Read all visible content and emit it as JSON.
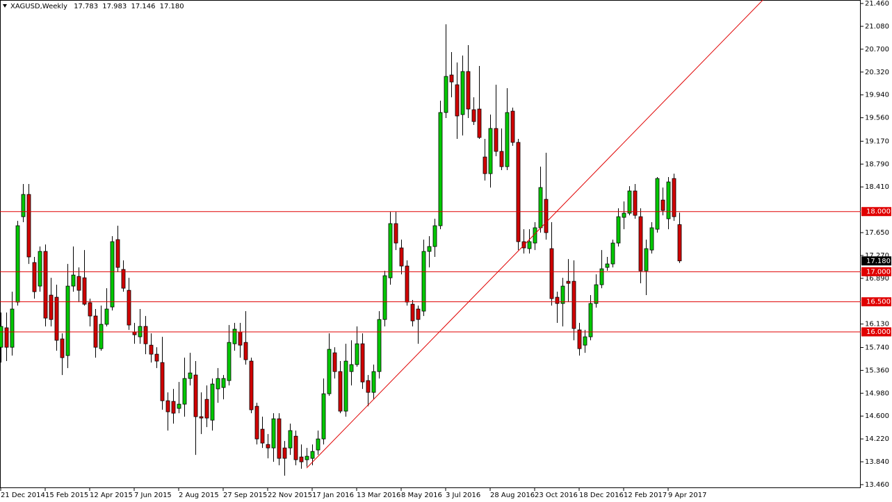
{
  "chart_data": {
    "type": "candlestick",
    "title": "XAGUSD,Weekly",
    "ohlc_labels": [
      "17.783",
      "17.983",
      "17.146",
      "17.180"
    ],
    "categories": [
      "21 Dec 2014",
      null,
      null,
      null,
      null,
      null,
      null,
      null,
      "15 Feb 2015",
      null,
      null,
      null,
      null,
      null,
      null,
      null,
      "12 Apr 2015",
      null,
      null,
      null,
      null,
      null,
      null,
      null,
      "7 Jun 2015",
      null,
      null,
      null,
      null,
      null,
      null,
      null,
      "2 Aug 2015",
      null,
      null,
      null,
      null,
      null,
      null,
      null,
      "27 Sep 2015",
      null,
      null,
      null,
      null,
      null,
      null,
      null,
      "22 Nov 2015",
      null,
      null,
      null,
      null,
      null,
      null,
      null,
      "17 Jan 2016",
      null,
      null,
      null,
      null,
      null,
      null,
      null,
      "13 Mar 2016",
      null,
      null,
      null,
      null,
      null,
      null,
      null,
      "8 May 2016",
      null,
      null,
      null,
      null,
      null,
      null,
      null,
      "3 Jul 2016",
      null,
      null,
      null,
      null,
      null,
      null,
      null,
      "28 Aug 2016",
      null,
      null,
      null,
      null,
      null,
      null,
      null,
      "23 Oct 2016",
      null,
      null,
      null,
      null,
      null,
      null,
      null,
      "18 Dec 2016",
      null,
      null,
      null,
      null,
      null,
      null,
      null,
      "12 Feb 2017",
      null,
      null,
      null,
      null,
      null,
      null,
      null,
      "9 Apr 2017",
      null,
      null
    ],
    "open": [
      15.744,
      16.068,
      15.744,
      16.495,
      17.915,
      18.285,
      17.153,
      16.761,
      17.338,
      16.611,
      16.576,
      15.883,
      15.606,
      16.761,
      16.922,
      16.899,
      16.484,
      16.264,
      15.721,
      16.126,
      16.414,
      17.534,
      17.038,
      16.691,
      15.999,
      15.918,
      16.091,
      15.779,
      15.629,
      15.49,
      14.855,
      14.844,
      14.728,
      14.798,
      15.225,
      15.283,
      14.59,
      14.878,
      14.532,
      15.052,
      15.075,
      15.19,
      15.802,
      15.999,
      15.825,
      15.514,
      14.763,
      14.382,
      14.128,
      14.07,
      14.555,
      14.07,
      14.07,
      14.266,
      13.92,
      13.874,
      13.897,
      14.036,
      14.22,
      14.971,
      15.652,
      15.34,
      14.682,
      15.34,
      15.456,
      15.802,
      15.19,
      14.994,
      15.34,
      16.206,
      16.899,
      17.8,
      17.396,
      17.095,
      16.46,
      16.38,
      16.345,
      17.338,
      17.419,
      17.765,
      19.647,
      20.271,
      20.109,
      19.613,
      20.329,
      19.694,
      19.705,
      18.908,
      18.631,
      19.382,
      19.001,
      18.747,
      19.67,
      19.151,
      17.5,
      17.384,
      17.477,
      17.731,
      18.204,
      17.384,
      16.576,
      16.472,
      16.841,
      16.841,
      16.033,
      15.779,
      15.918,
      16.472,
      16.784,
      17.072,
      17.13,
      17.477,
      17.904,
      17.973,
      18.343,
      17.915,
      17.015,
      17.361,
      17.707,
      18.192,
      17.881,
      18.55,
      17.783
    ],
    "high": [
      16.322,
      16.322,
      16.668,
      17.846,
      18.458,
      18.458,
      17.246,
      17.419,
      17.453,
      16.899,
      16.784,
      15.975,
      17.13,
      17.419,
      17.072,
      17.361,
      16.553,
      16.38,
      16.437,
      16.726,
      17.592,
      17.765,
      17.188,
      16.899,
      16.149,
      16.38,
      16.264,
      15.975,
      15.744,
      15.918,
      14.994,
      15.052,
      15.167,
      15.571,
      15.652,
      15.514,
      14.994,
      15.109,
      15.225,
      15.398,
      15.283,
      16.114,
      16.149,
      16.149,
      16.345,
      15.571,
      14.821,
      14.59,
      14.301,
      14.648,
      14.648,
      14.186,
      14.474,
      14.359,
      14.128,
      14.07,
      14.128,
      14.359,
      15.225,
      15.975,
      15.744,
      15.514,
      15.802,
      15.86,
      16.091,
      15.975,
      15.283,
      15.456,
      16.345,
      17.015,
      17.996,
      17.996,
      17.534,
      17.188,
      16.53,
      16.437,
      17.534,
      17.592,
      17.881,
      19.844,
      21.114,
      20.652,
      20.479,
      20.594,
      20.767,
      19.901,
      20.421,
      19.209,
      19.613,
      20.109,
      19.382,
      20.052,
      19.728,
      19.209,
      17.707,
      17.707,
      17.823,
      18.747,
      18.978,
      17.823,
      16.668,
      16.899,
      17.211,
      17.188,
      16.149,
      16.033,
      16.611,
      16.957,
      17.361,
      17.246,
      17.534,
      18.054,
      18.169,
      18.423,
      18.458,
      18.054,
      17.534,
      17.823,
      18.574,
      18.4,
      18.574,
      18.631,
      17.983
    ],
    "low": [
      15.49,
      15.514,
      15.606,
      16.437,
      17.823,
      17.13,
      16.553,
      16.668,
      16.091,
      16.091,
      15.687,
      15.283,
      15.398,
      16.668,
      16.495,
      16.437,
      16.091,
      15.571,
      15.687,
      16.091,
      16.356,
      16.992,
      16.668,
      16.033,
      15.802,
      15.802,
      15.629,
      15.49,
      15.398,
      14.705,
      14.359,
      14.474,
      14.648,
      14.59,
      15.109,
      13.955,
      14.301,
      14.417,
      14.359,
      14.821,
      14.878,
      15.109,
      15.687,
      15.571,
      15.456,
      14.648,
      14.128,
      14.07,
      13.897,
      13.839,
      13.782,
      13.608,
      13.955,
      13.782,
      13.724,
      13.758,
      13.782,
      13.955,
      14.128,
      14.936,
      15.225,
      14.648,
      14.59,
      15.109,
      15.421,
      15.052,
      14.763,
      14.878,
      15.225,
      16.091,
      16.784,
      17.361,
      16.957,
      16.437,
      16.091,
      15.802,
      16.264,
      17.072,
      17.246,
      17.707,
      19.555,
      19.901,
      19.209,
      19.266,
      19.555,
      19.44,
      19.209,
      18.516,
      18.4,
      18.92,
      18.689,
      18.689,
      19.093,
      17.361,
      17.303,
      17.303,
      17.361,
      17.65,
      17.534,
      16.437,
      16.149,
      16.091,
      16.495,
      15.86,
      15.606,
      15.652,
      15.86,
      16.403,
      16.726,
      17.015,
      17.072,
      17.419,
      17.707,
      17.938,
      17.881,
      16.807,
      16.611,
      17.303,
      17.65,
      17.938,
      17.707,
      17.846,
      17.146
    ],
    "close": [
      16.091,
      15.744,
      16.38,
      17.765,
      18.285,
      17.246,
      16.668,
      17.338,
      16.229,
      16.206,
      15.86,
      15.571,
      16.761,
      16.945,
      16.691,
      16.46,
      16.264,
      15.744,
      16.126,
      16.38,
      17.5,
      17.072,
      16.726,
      16.114,
      15.952,
      16.091,
      15.802,
      15.629,
      15.514,
      14.855,
      14.671,
      14.648,
      14.798,
      15.225,
      15.317,
      14.59,
      14.567,
      14.567,
      15.133,
      15.225,
      15.225,
      15.825,
      16.045,
      15.779,
      15.537,
      14.705,
      14.22,
      14.151,
      14.07,
      14.555,
      13.897,
      13.897,
      14.359,
      13.874,
      13.839,
      13.932,
      14.012,
      14.22,
      14.971,
      15.71,
      15.34,
      14.682,
      15.514,
      15.456,
      15.802,
      15.167,
      14.994,
      15.34,
      16.206,
      16.934,
      17.8,
      17.477,
      17.095,
      16.495,
      16.183,
      16.206,
      17.338,
      17.419,
      17.765,
      19.647,
      20.248,
      20.155,
      19.59,
      20.329,
      19.705,
      19.497,
      19.232,
      18.631,
      19.382,
      19.001,
      18.747,
      19.647,
      19.151,
      17.5,
      17.396,
      17.5,
      17.731,
      18.4,
      17.65,
      16.553,
      16.472,
      16.761,
      16.807,
      16.056,
      15.721,
      15.918,
      16.472,
      16.784,
      17.049,
      17.13,
      17.477,
      17.915,
      17.973,
      18.343,
      17.938,
      17.015,
      17.384,
      17.731,
      18.55,
      18.019,
      18.493,
      17.915,
      17.18
    ],
    "up_color": "#00c800",
    "down_color": "#d00000",
    "trendline": {
      "color": "#e00000",
      "extend": "right",
      "values": [
        null,
        null,
        null,
        null,
        null,
        null,
        null,
        null,
        null,
        null,
        null,
        null,
        null,
        null,
        null,
        null,
        null,
        null,
        null,
        null,
        null,
        null,
        null,
        null,
        null,
        null,
        null,
        null,
        null,
        null,
        null,
        null,
        null,
        null,
        null,
        null,
        null,
        null,
        null,
        null,
        null,
        null,
        null,
        null,
        null,
        null,
        null,
        null,
        null,
        null,
        null,
        null,
        null,
        null,
        null,
        13.735,
        null,
        null,
        null,
        null,
        null,
        null,
        null,
        null,
        null,
        null,
        null,
        null,
        null,
        null,
        null,
        null,
        null,
        null,
        null,
        null,
        null,
        null,
        null,
        null,
        null,
        null,
        null,
        null,
        null,
        null,
        null,
        null,
        null,
        null,
        null,
        null,
        null,
        null,
        null,
        null,
        null,
        null,
        null,
        null,
        null,
        null,
        null,
        null,
        null,
        null,
        null,
        null,
        null,
        null,
        null,
        null,
        null,
        null,
        null,
        null,
        null,
        null,
        null,
        null,
        null,
        null,
        20.092
      ]
    },
    "levels": [
      {
        "value": 18,
        "label": "18.000"
      },
      {
        "value": 17,
        "label": "17.000"
      },
      {
        "value": 16.5,
        "label": "16.500"
      },
      {
        "value": 16,
        "label": "16.000"
      }
    ],
    "level_color": "#e00000",
    "last_price": {
      "value": 17.18,
      "label": "17.180"
    },
    "ylim": [
      13.402,
      21.518
    ],
    "yticks": [
      {
        "value": 21.46,
        "label": "21.460"
      },
      {
        "value": 21.08,
        "label": "21.080"
      },
      {
        "value": 20.7,
        "label": "20.700"
      },
      {
        "value": 20.32,
        "label": "20.320"
      },
      {
        "value": 19.94,
        "label": "19.940"
      },
      {
        "value": 19.56,
        "label": "19.560"
      },
      {
        "value": 19.17,
        "label": "19.170"
      },
      {
        "value": 18.79,
        "label": "18.790"
      },
      {
        "value": 18.41,
        "label": "18.410"
      },
      {
        "value": 17.65,
        "label": "17.650"
      },
      {
        "value": 17.27,
        "label": "17.270"
      },
      {
        "value": 16.89,
        "label": "16.890"
      },
      {
        "value": 16.13,
        "label": "16.130"
      },
      {
        "value": 15.74,
        "label": "15.740"
      },
      {
        "value": 15.36,
        "label": "15.360"
      },
      {
        "value": 14.98,
        "label": "14.980"
      },
      {
        "value": 14.6,
        "label": "14.600"
      },
      {
        "value": 14.22,
        "label": "14.220"
      },
      {
        "value": 13.84,
        "label": "13.840"
      },
      {
        "value": 13.46,
        "label": "13.460"
      }
    ],
    "grid": false
  }
}
